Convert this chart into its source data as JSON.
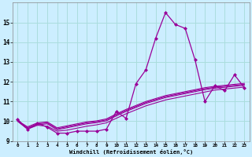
{
  "xlabel": "Windchill (Refroidissement éolien,°C)",
  "background_color": "#cceeff",
  "grid_color": "#aadddd",
  "line_color": "#990099",
  "x_values": [
    0,
    1,
    2,
    3,
    4,
    5,
    6,
    7,
    8,
    9,
    10,
    11,
    12,
    13,
    14,
    15,
    16,
    17,
    18,
    19,
    20,
    21,
    22,
    23
  ],
  "series": [
    [
      10.1,
      9.6,
      9.9,
      9.7,
      9.4,
      9.4,
      9.5,
      9.5,
      9.5,
      9.6,
      10.5,
      10.15,
      11.9,
      12.6,
      14.2,
      15.5,
      14.9,
      14.7,
      13.1,
      11.0,
      11.8,
      11.55,
      12.35,
      11.7
    ],
    [
      10.0,
      9.6,
      9.8,
      9.75,
      9.5,
      9.55,
      9.65,
      9.75,
      9.82,
      9.92,
      10.15,
      10.38,
      10.58,
      10.78,
      10.93,
      11.08,
      11.18,
      11.28,
      11.38,
      11.48,
      11.58,
      11.63,
      11.68,
      11.73
    ],
    [
      10.0,
      9.62,
      9.82,
      9.87,
      9.57,
      9.67,
      9.77,
      9.87,
      9.93,
      10.02,
      10.27,
      10.5,
      10.7,
      10.9,
      11.05,
      11.2,
      11.3,
      11.4,
      11.5,
      11.6,
      11.67,
      11.72,
      11.77,
      11.82
    ],
    [
      10.02,
      9.67,
      9.87,
      9.92,
      9.62,
      9.72,
      9.82,
      9.92,
      9.98,
      10.07,
      10.32,
      10.55,
      10.75,
      10.95,
      11.1,
      11.25,
      11.35,
      11.45,
      11.55,
      11.65,
      11.72,
      11.77,
      11.82,
      11.87
    ],
    [
      10.03,
      9.72,
      9.92,
      9.97,
      9.67,
      9.77,
      9.87,
      9.97,
      10.02,
      10.12,
      10.37,
      10.6,
      10.8,
      11.0,
      11.15,
      11.3,
      11.4,
      11.5,
      11.6,
      11.7,
      11.77,
      11.82,
      11.87,
      11.92
    ]
  ],
  "ylim": [
    9.0,
    16.0
  ],
  "xlim": [
    -0.5,
    23.5
  ],
  "yticks": [
    9,
    10,
    11,
    12,
    13,
    14,
    15
  ],
  "xticks": [
    0,
    1,
    2,
    3,
    4,
    5,
    6,
    7,
    8,
    9,
    10,
    11,
    12,
    13,
    14,
    15,
    16,
    17,
    18,
    19,
    20,
    21,
    22,
    23
  ]
}
